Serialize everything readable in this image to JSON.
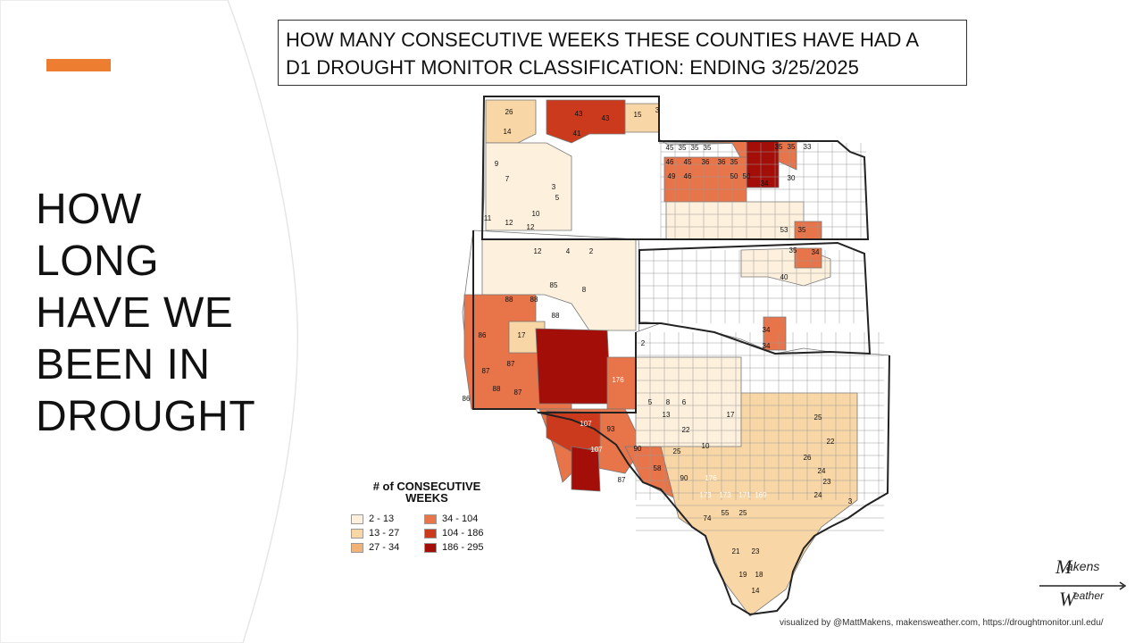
{
  "slide": {
    "title_lines": [
      "HOW",
      "LONG",
      "HAVE WE",
      "BEEN IN",
      "DROUGHT"
    ],
    "accent_color": "#ed7d31"
  },
  "map": {
    "title_lines": [
      "HOW MANY CONSECUTIVE WEEKS THESE COUNTIES HAVE HAD A",
      "D1 DROUGHT MONITOR CLASSIFICATION: ENDING 3/25/2025"
    ],
    "legend": {
      "title_lines": [
        "# of CONSECUTIVE",
        "WEEKS"
      ],
      "items": [
        {
          "label": "2 - 13",
          "color": "#fdf0dc"
        },
        {
          "label": "34 - 104",
          "color": "#e8744a"
        },
        {
          "label": "13 - 27",
          "color": "#f9d6a5"
        },
        {
          "label": "104 - 186",
          "color": "#cc3a1e"
        },
        {
          "label": "27 - 34",
          "color": "#f3b277"
        },
        {
          "label": "186 - 295",
          "color": "#a30e08"
        }
      ]
    },
    "county_labels": [
      {
        "v": "26",
        "c": 0
      },
      {
        "v": "43",
        "c": 1
      },
      {
        "v": "43",
        "c": 1
      },
      {
        "v": "15",
        "c": 2
      },
      {
        "v": "3",
        "c": 3
      },
      {
        "v": "14",
        "c": 2
      },
      {
        "v": "41",
        "c": 1
      },
      {
        "v": "9",
        "c": 3
      },
      {
        "v": "7",
        "c": 3
      },
      {
        "v": "3",
        "c": 3
      },
      {
        "v": "11",
        "c": 3
      },
      {
        "v": "10",
        "c": 3
      },
      {
        "v": "12",
        "c": 3
      },
      {
        "v": "12",
        "c": 3
      },
      {
        "v": "5",
        "c": 3
      },
      {
        "v": "45",
        "c": 4
      },
      {
        "v": "35",
        "c": 4
      },
      {
        "v": "35",
        "c": 4
      },
      {
        "v": "35",
        "c": 4
      },
      {
        "v": "171",
        "c": 5
      },
      {
        "v": "35",
        "c": 4
      },
      {
        "v": "35",
        "c": 4
      },
      {
        "v": "33",
        "c": 4
      },
      {
        "v": "46",
        "c": 4
      },
      {
        "v": "45",
        "c": 4
      },
      {
        "v": "36",
        "c": 4
      },
      {
        "v": "36",
        "c": 4
      },
      {
        "v": "35",
        "c": 4
      },
      {
        "v": "49",
        "c": 4
      },
      {
        "v": "46",
        "c": 4
      },
      {
        "v": "50",
        "c": 4
      },
      {
        "v": "50",
        "c": 4
      },
      {
        "v": "30",
        "c": 2
      },
      {
        "v": "34",
        "c": 2
      },
      {
        "v": "53",
        "c": 4
      },
      {
        "v": "35",
        "c": 4
      },
      {
        "v": "12",
        "c": 3
      },
      {
        "v": "4",
        "c": 3
      },
      {
        "v": "2",
        "c": 3
      },
      {
        "v": "85",
        "c": 4
      },
      {
        "v": "8",
        "c": 3
      },
      {
        "v": "88",
        "c": 4
      },
      {
        "v": "88",
        "c": 4
      },
      {
        "v": "88",
        "c": 4
      },
      {
        "v": "86",
        "c": 4
      },
      {
        "v": "17",
        "c": 2
      },
      {
        "v": "87",
        "c": 4
      },
      {
        "v": "87",
        "c": 4
      },
      {
        "v": "87",
        "c": 4
      },
      {
        "v": "88",
        "c": 4
      },
      {
        "v": "86",
        "c": 4
      },
      {
        "v": "176",
        "c": 5
      },
      {
        "v": "107",
        "c": 5
      },
      {
        "v": "107",
        "c": 5
      },
      {
        "v": "93",
        "c": 4
      },
      {
        "v": "107",
        "c": 5
      },
      {
        "v": "90",
        "c": 4
      },
      {
        "v": "87",
        "c": 4
      },
      {
        "v": "58",
        "c": 4
      },
      {
        "v": "90",
        "c": 4
      },
      {
        "v": "25",
        "c": 2
      },
      {
        "v": "176",
        "c": 5
      },
      {
        "v": "173",
        "c": 5
      },
      {
        "v": "173",
        "c": 5
      },
      {
        "v": "171",
        "c": 5
      },
      {
        "v": "169",
        "c": 5
      },
      {
        "v": "55",
        "c": 4
      },
      {
        "v": "25",
        "c": 2
      },
      {
        "v": "74",
        "c": 4
      },
      {
        "v": "21",
        "c": 2
      },
      {
        "v": "23",
        "c": 2
      },
      {
        "v": "19",
        "c": 2
      },
      {
        "v": "18",
        "c": 2
      },
      {
        "v": "14",
        "c": 2
      },
      {
        "v": "34",
        "c": 4
      },
      {
        "v": "35",
        "c": 4
      },
      {
        "v": "34",
        "c": 4
      },
      {
        "v": "40",
        "c": 4
      },
      {
        "v": "34",
        "c": 2
      },
      {
        "v": "24",
        "c": 2
      },
      {
        "v": "22",
        "c": 2
      },
      {
        "v": "23",
        "c": 2
      },
      {
        "v": "25",
        "c": 2
      },
      {
        "v": "26",
        "c": 2
      },
      {
        "v": "24",
        "c": 2
      },
      {
        "v": "3",
        "c": 3
      },
      {
        "v": "13",
        "c": 3
      },
      {
        "v": "10",
        "c": 3
      },
      {
        "v": "22",
        "c": 2
      },
      {
        "v": "17",
        "c": 3
      },
      {
        "v": "2",
        "c": 3
      },
      {
        "v": "5",
        "c": 3
      },
      {
        "v": "8",
        "c": 3
      },
      {
        "v": "6",
        "c": 3
      }
    ]
  },
  "logo": {
    "top_text": "akens",
    "bottom_text": "eather"
  },
  "credit": "visualized by @MattMakens, makensweather.com, https://droughtmonitor.unl.edu/"
}
